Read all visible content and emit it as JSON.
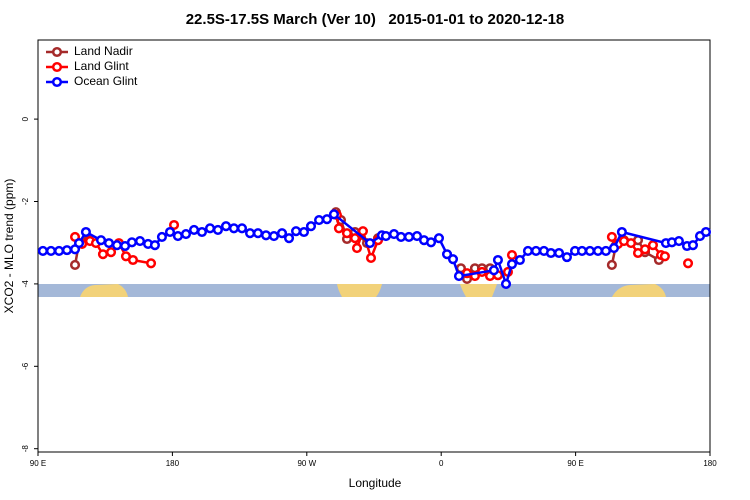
{
  "chart_data": {
    "type": "line",
    "title": "22.5S-17.5S March (Ver 10)   2015-01-01 to 2020-12-18",
    "xlabel": "Longitude",
    "ylabel": "XCO2 - MLO trend (ppm)",
    "xlim": [
      90,
      540
    ],
    "ylim": [
      -8.08,
      1.92
    ],
    "xticks": [
      {
        "value": 90,
        "label": "90 E"
      },
      180,
      {
        "value": 270,
        "label": "90 W"
      },
      {
        "value": 360,
        "label": "0"
      },
      {
        "value": 450,
        "label": "90 E"
      },
      {
        "value": 540,
        "label": "180"
      }
    ],
    "yticks": [
      0,
      -2,
      -4,
      -6,
      -8
    ],
    "legend": "top-left",
    "series": [
      {
        "name": "Land Nadir",
        "color": "#a52a2a",
        "x": [
          114.8,
          117.5,
          123.5,
          null,
          289.5,
          292.9,
          296.9,
          302.3,
          310.3,
          317.7,
          null,
          373.2,
          377.3,
          382.6,
          387.3,
          392.7,
          null,
          474.3,
          477.0,
          482.4,
          491.8,
          496.5,
          505.8
        ],
        "values": [
          -3.54,
          -3.01,
          -2.94,
          null,
          -2.26,
          -2.45,
          -2.91,
          -2.74,
          -3.01,
          -2.89,
          null,
          -3.62,
          -3.88,
          -3.62,
          -3.62,
          -3.62,
          null,
          -3.54,
          -3.06,
          -2.94,
          -2.94,
          -3.23,
          -3.42
        ]
      },
      {
        "name": "Land Glint",
        "color": "#ff0000",
        "x": [
          114.8,
          119.5,
          124.8,
          128.8,
          133.5,
          138.9,
          144.2,
          148.9,
          153.6,
          165.7,
          null,
          181.1,
          null,
          290.2,
          291.5,
          296.9,
          302.3,
          303.6,
          307.6,
          313.0,
          317.7,
          null,
          377.3,
          382.6,
          387.3,
          392.7,
          398.0,
          404.7,
          407.4,
          null,
          474.3,
          478.4,
          482.4,
          487.1,
          491.8,
          496.5,
          501.8,
          507.2,
          509.8,
          null,
          525.3
        ],
        "values": [
          -2.86,
          -3.03,
          -2.96,
          -3.01,
          -3.28,
          -3.23,
          -3.01,
          -3.33,
          -3.42,
          -3.5,
          null,
          -2.57,
          null,
          -2.33,
          -2.65,
          -2.77,
          -2.89,
          -3.13,
          -2.72,
          -3.37,
          -2.94,
          null,
          -3.74,
          -3.81,
          -3.71,
          -3.81,
          -3.79,
          -3.71,
          -3.3,
          null,
          -2.86,
          -3.03,
          -2.96,
          -3.01,
          -3.25,
          -3.16,
          -3.06,
          -3.3,
          -3.33,
          null,
          -3.5
        ]
      },
      {
        "name": "Ocean Glint",
        "color": "#0000ff",
        "x": [
          93.3,
          98.7,
          104.1,
          109.4,
          114.8,
          117.5,
          122.1,
          132.2,
          137.5,
          142.9,
          148.3,
          152.9,
          158.3,
          163.7,
          168.3,
          173.0,
          178.4,
          183.7,
          189.1,
          194.5,
          199.8,
          205.2,
          210.5,
          215.9,
          221.2,
          226.6,
          232.0,
          237.3,
          242.7,
          248.0,
          253.4,
          258.1,
          262.8,
          268.1,
          272.8,
          278.2,
          283.5,
          288.2,
          312.3,
          320.3,
          323.0,
          328.4,
          333.1,
          338.4,
          343.8,
          348.5,
          353.2,
          358.5,
          363.9,
          367.9,
          371.9,
          395.3,
          398.0,
          403.4,
          407.4,
          412.7,
          418.1,
          423.5,
          428.8,
          433.5,
          438.9,
          444.2,
          449.6,
          454.3,
          459.6,
          465.0,
          470.3,
          475.7,
          481.0,
          510.5,
          514.5,
          519.2,
          524.6,
          528.6,
          533.3,
          537.3
        ],
        "values": [
          -3.2,
          -3.2,
          -3.2,
          -3.18,
          -3.16,
          -3.01,
          -2.74,
          -2.94,
          -3.01,
          -3.06,
          -3.08,
          -2.99,
          -2.96,
          -3.03,
          -3.06,
          -2.86,
          -2.74,
          -2.84,
          -2.79,
          -2.69,
          -2.74,
          -2.65,
          -2.69,
          -2.6,
          -2.65,
          -2.65,
          -2.77,
          -2.77,
          -2.82,
          -2.84,
          -2.77,
          -2.89,
          -2.72,
          -2.74,
          -2.6,
          -2.45,
          -2.43,
          -2.31,
          -3.01,
          -2.82,
          -2.84,
          -2.79,
          -2.86,
          -2.86,
          -2.84,
          -2.94,
          -2.99,
          -2.89,
          -3.28,
          -3.4,
          -3.81,
          -3.67,
          -3.42,
          -4.0,
          -3.52,
          -3.42,
          -3.2,
          -3.2,
          -3.2,
          -3.25,
          -3.25,
          -3.35,
          -3.2,
          -3.2,
          -3.2,
          -3.2,
          -3.2,
          -3.13,
          -2.74,
          -3.01,
          -2.99,
          -2.96,
          -3.08,
          -3.06,
          -2.84,
          -2.74
        ]
      }
    ]
  }
}
